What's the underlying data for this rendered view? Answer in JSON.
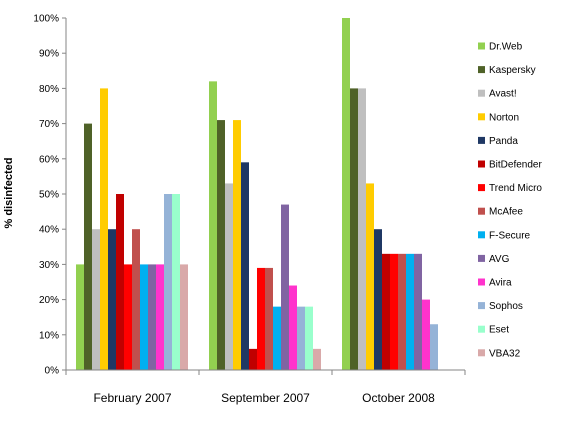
{
  "chart_data": {
    "type": "bar",
    "title": "",
    "xlabel": "",
    "ylabel": "% disinfected",
    "ylim": [
      0,
      100
    ],
    "y_ticks": [
      "0%",
      "10%",
      "20%",
      "30%",
      "40%",
      "50%",
      "60%",
      "70%",
      "80%",
      "90%",
      "100%"
    ],
    "grid": false,
    "legend_position": "right",
    "categories": [
      "February 2007",
      "September 2007",
      "October 2008"
    ],
    "series": [
      {
        "name": "Dr.Web",
        "color": "#92d050",
        "values": [
          30,
          82,
          100
        ]
      },
      {
        "name": "Kaspersky",
        "color": "#4f6228",
        "values": [
          70,
          71,
          80
        ]
      },
      {
        "name": "Avast!",
        "color": "#bfbfbf",
        "values": [
          40,
          53,
          80
        ]
      },
      {
        "name": "Norton",
        "color": "#ffcc00",
        "values": [
          80,
          71,
          53
        ]
      },
      {
        "name": "Panda",
        "color": "#1f3864",
        "values": [
          40,
          59,
          40
        ]
      },
      {
        "name": "BitDefender",
        "color": "#c00000",
        "values": [
          50,
          6,
          33
        ]
      },
      {
        "name": "Trend Micro",
        "color": "#ff0000",
        "values": [
          30,
          29,
          33
        ]
      },
      {
        "name": "McAfee",
        "color": "#c0504d",
        "values": [
          40,
          29,
          33
        ]
      },
      {
        "name": "F-Secure",
        "color": "#00b0f0",
        "values": [
          30,
          18,
          33
        ]
      },
      {
        "name": "AVG",
        "color": "#8064a2",
        "values": [
          30,
          47,
          33
        ]
      },
      {
        "name": "Avira",
        "color": "#ff33cc",
        "values": [
          30,
          24,
          20
        ]
      },
      {
        "name": "Sophos",
        "color": "#95b3d7",
        "values": [
          50,
          18,
          13
        ]
      },
      {
        "name": "Eset",
        "color": "#99ffcc",
        "values": [
          50,
          18,
          0
        ]
      },
      {
        "name": "VBA32",
        "color": "#d9a9a9",
        "values": [
          30,
          6,
          0
        ]
      }
    ]
  }
}
